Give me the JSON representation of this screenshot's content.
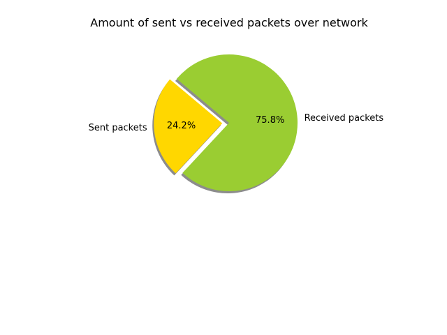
{
  "chart_data": {
    "type": "pie",
    "title": "Amount of sent vs received packets over network",
    "labels": [
      "Sent packets",
      "Received packets"
    ],
    "values": [
      24.2,
      75.8
    ],
    "percent_labels": [
      "24.2%",
      "75.8%"
    ],
    "colors": [
      "#ffd700",
      "#9acd32"
    ],
    "explode": [
      0.1,
      0
    ],
    "shadow": true,
    "start_angle": 140,
    "legend": "none"
  }
}
